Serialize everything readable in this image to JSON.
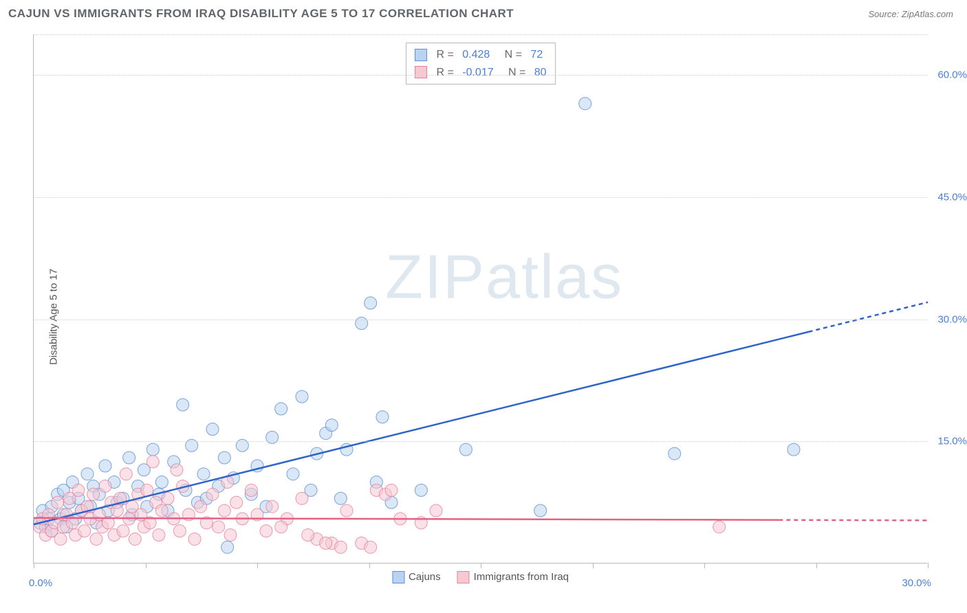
{
  "header": {
    "title": "CAJUN VS IMMIGRANTS FROM IRAQ DISABILITY AGE 5 TO 17 CORRELATION CHART",
    "source": "Source: ZipAtlas.com"
  },
  "watermark": {
    "bold": "ZIP",
    "thin": "atlas"
  },
  "chart": {
    "type": "scatter",
    "ylabel": "Disability Age 5 to 17",
    "xlim": [
      0,
      30
    ],
    "ylim": [
      0,
      65
    ],
    "yticks": [
      15,
      30,
      45,
      60
    ],
    "ytick_labels": [
      "15.0%",
      "30.0%",
      "45.0%",
      "60.0%"
    ],
    "xtick_positions": [
      0,
      3.75,
      7.5,
      11.25,
      15,
      18.75,
      22.5,
      26.25,
      30
    ],
    "xlabel_start": "0.0%",
    "xlabel_end": "30.0%",
    "background_color": "#ffffff",
    "grid_color": "#d0d0d0",
    "marker_radius": 9,
    "marker_opacity": 0.55,
    "series": [
      {
        "name": "Cajuns",
        "fill": "#b9d3f0",
        "stroke": "#5a8fd6",
        "trend": {
          "slope": 0.91,
          "intercept": 4.8,
          "x0": 0,
          "x1": 30,
          "stroke": "#2e63c9",
          "width": 2.5,
          "dash_after": 26
        },
        "R": "0.428",
        "N": "72",
        "points": [
          [
            0.2,
            5.0
          ],
          [
            0.3,
            6.5
          ],
          [
            0.4,
            4.5
          ],
          [
            0.5,
            5.5
          ],
          [
            0.6,
            7.0
          ],
          [
            0.6,
            4.0
          ],
          [
            0.8,
            8.5
          ],
          [
            0.9,
            5.5
          ],
          [
            1.0,
            9.0
          ],
          [
            1.0,
            6.0
          ],
          [
            1.1,
            4.5
          ],
          [
            1.2,
            7.5
          ],
          [
            1.3,
            10.0
          ],
          [
            1.4,
            5.5
          ],
          [
            1.5,
            8.0
          ],
          [
            1.6,
            6.5
          ],
          [
            1.8,
            11.0
          ],
          [
            1.9,
            7.0
          ],
          [
            2.0,
            9.5
          ],
          [
            2.1,
            5.0
          ],
          [
            2.2,
            8.5
          ],
          [
            2.4,
            12.0
          ],
          [
            2.5,
            6.5
          ],
          [
            2.7,
            10.0
          ],
          [
            2.8,
            7.5
          ],
          [
            3.0,
            8.0
          ],
          [
            3.2,
            13.0
          ],
          [
            3.3,
            6.0
          ],
          [
            3.5,
            9.5
          ],
          [
            3.7,
            11.5
          ],
          [
            3.8,
            7.0
          ],
          [
            4.0,
            14.0
          ],
          [
            4.2,
            8.5
          ],
          [
            4.3,
            10.0
          ],
          [
            4.5,
            6.5
          ],
          [
            4.7,
            12.5
          ],
          [
            5.0,
            19.5
          ],
          [
            5.1,
            9.0
          ],
          [
            5.3,
            14.5
          ],
          [
            5.5,
            7.5
          ],
          [
            5.7,
            11.0
          ],
          [
            5.8,
            8.0
          ],
          [
            6.0,
            16.5
          ],
          [
            6.2,
            9.5
          ],
          [
            6.4,
            13.0
          ],
          [
            6.5,
            2.0
          ],
          [
            6.7,
            10.5
          ],
          [
            7.0,
            14.5
          ],
          [
            7.3,
            8.5
          ],
          [
            7.5,
            12.0
          ],
          [
            7.8,
            7.0
          ],
          [
            8.0,
            15.5
          ],
          [
            8.3,
            19.0
          ],
          [
            8.7,
            11.0
          ],
          [
            9.0,
            20.5
          ],
          [
            9.3,
            9.0
          ],
          [
            9.5,
            13.5
          ],
          [
            9.8,
            16.0
          ],
          [
            10.0,
            17.0
          ],
          [
            10.3,
            8.0
          ],
          [
            10.5,
            14.0
          ],
          [
            11.0,
            29.5
          ],
          [
            11.3,
            32.0
          ],
          [
            11.5,
            10.0
          ],
          [
            11.7,
            18.0
          ],
          [
            12.0,
            7.5
          ],
          [
            13.0,
            9.0
          ],
          [
            14.5,
            14.0
          ],
          [
            17.0,
            6.5
          ],
          [
            18.5,
            56.5
          ],
          [
            25.5,
            14.0
          ],
          [
            21.5,
            13.5
          ]
        ]
      },
      {
        "name": "Immigrants from Iraq",
        "fill": "#f6c9d3",
        "stroke": "#e8809a",
        "trend": {
          "slope": -0.01,
          "intercept": 5.6,
          "x0": 0,
          "x1": 30,
          "stroke": "#e36284",
          "width": 2.5,
          "dash_after": 25
        },
        "R": "-0.017",
        "N": "80",
        "points": [
          [
            0.2,
            4.5
          ],
          [
            0.3,
            5.5
          ],
          [
            0.4,
            3.5
          ],
          [
            0.5,
            6.0
          ],
          [
            0.6,
            4.0
          ],
          [
            0.7,
            5.0
          ],
          [
            0.8,
            7.5
          ],
          [
            0.9,
            3.0
          ],
          [
            1.0,
            4.5
          ],
          [
            1.1,
            6.0
          ],
          [
            1.2,
            8.0
          ],
          [
            1.3,
            5.0
          ],
          [
            1.4,
            3.5
          ],
          [
            1.5,
            9.0
          ],
          [
            1.6,
            6.5
          ],
          [
            1.7,
            4.0
          ],
          [
            1.8,
            7.0
          ],
          [
            1.9,
            5.5
          ],
          [
            2.0,
            8.5
          ],
          [
            2.1,
            3.0
          ],
          [
            2.2,
            6.0
          ],
          [
            2.3,
            4.5
          ],
          [
            2.4,
            9.5
          ],
          [
            2.5,
            5.0
          ],
          [
            2.6,
            7.5
          ],
          [
            2.7,
            3.5
          ],
          [
            2.8,
            6.5
          ],
          [
            2.9,
            8.0
          ],
          [
            3.0,
            4.0
          ],
          [
            3.1,
            11.0
          ],
          [
            3.2,
            5.5
          ],
          [
            3.3,
            7.0
          ],
          [
            3.4,
            3.0
          ],
          [
            3.5,
            8.5
          ],
          [
            3.6,
            6.0
          ],
          [
            3.7,
            4.5
          ],
          [
            3.8,
            9.0
          ],
          [
            3.9,
            5.0
          ],
          [
            4.0,
            12.5
          ],
          [
            4.1,
            7.5
          ],
          [
            4.2,
            3.5
          ],
          [
            4.3,
            6.5
          ],
          [
            4.5,
            8.0
          ],
          [
            4.7,
            5.5
          ],
          [
            4.9,
            4.0
          ],
          [
            5.0,
            9.5
          ],
          [
            5.2,
            6.0
          ],
          [
            5.4,
            3.0
          ],
          [
            5.6,
            7.0
          ],
          [
            5.8,
            5.0
          ],
          [
            6.0,
            8.5
          ],
          [
            6.2,
            4.5
          ],
          [
            6.4,
            6.5
          ],
          [
            6.6,
            3.5
          ],
          [
            6.8,
            7.5
          ],
          [
            7.0,
            5.5
          ],
          [
            7.3,
            9.0
          ],
          [
            7.5,
            6.0
          ],
          [
            7.8,
            4.0
          ],
          [
            8.0,
            7.0
          ],
          [
            8.5,
            5.5
          ],
          [
            9.0,
            8.0
          ],
          [
            9.5,
            3.0
          ],
          [
            10.0,
            2.5
          ],
          [
            10.3,
            2.0
          ],
          [
            10.5,
            6.5
          ],
          [
            11.0,
            2.5
          ],
          [
            11.3,
            2.0
          ],
          [
            11.5,
            9.0
          ],
          [
            11.8,
            8.5
          ],
          [
            12.0,
            9.0
          ],
          [
            12.3,
            5.5
          ],
          [
            13.0,
            5.0
          ],
          [
            13.5,
            6.5
          ],
          [
            9.8,
            2.5
          ],
          [
            8.3,
            4.5
          ],
          [
            4.8,
            11.5
          ],
          [
            6.5,
            10.0
          ],
          [
            23.0,
            4.5
          ],
          [
            9.2,
            3.5
          ]
        ]
      }
    ],
    "bottom_legend": [
      {
        "label": "Cajuns",
        "class": "sq-blue"
      },
      {
        "label": "Immigrants from Iraq",
        "class": "sq-pink"
      }
    ]
  }
}
